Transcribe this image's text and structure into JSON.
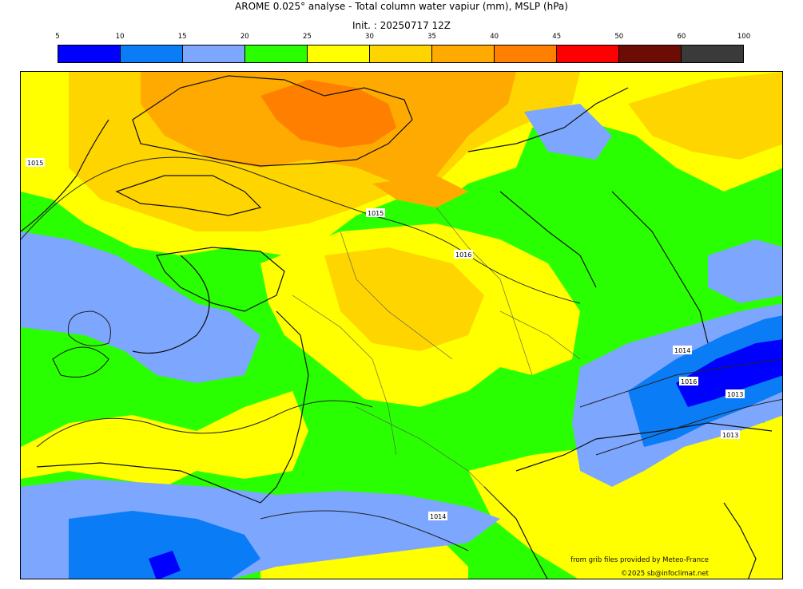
{
  "title": "AROME 0.025° analyse - Total column water vapiur (mm), MSLP (hPa)",
  "subtitle": "Init. : 20250717 12Z",
  "colorbar": {
    "ticks": [
      "5",
      "10",
      "15",
      "20",
      "25",
      "30",
      "35",
      "40",
      "45",
      "50",
      "60",
      "100"
    ],
    "colors": [
      "#0000ff",
      "#0a7cf5",
      "#7da6ff",
      "#29ff00",
      "#ffff00",
      "#ffd500",
      "#ffaa00",
      "#ff8000",
      "#ff0000",
      "#6b0d05",
      "#3a3a3a"
    ]
  },
  "isobar_labels": [
    {
      "text": "1015"
    },
    {
      "text": "1015"
    },
    {
      "text": "1016"
    },
    {
      "text": "1014"
    },
    {
      "text": "1016"
    },
    {
      "text": "1013"
    },
    {
      "text": "1013"
    },
    {
      "text": "1014"
    }
  ],
  "credits": {
    "line1": "from grib files provided by Meteo-France",
    "line2": "©2025 sb@infoclimat.net"
  }
}
